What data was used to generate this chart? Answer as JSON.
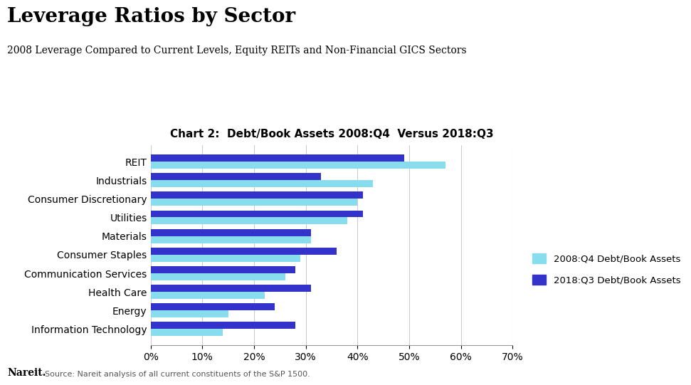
{
  "title": "Leverage Ratios by Sector",
  "subtitle": "2008 Leverage Compared to Current Levels, Equity REITs and Non-Financial GICS Sectors",
  "chart_title": "Chart 2:  Debt/Book Assets 2008:Q4  Versus 2018:Q3",
  "categories": [
    "REIT",
    "Industrials",
    "Consumer Discretionary",
    "Utilities",
    "Materials",
    "Consumer Staples",
    "Communication Services",
    "Health Care",
    "Energy",
    "Information Technology"
  ],
  "values_2008Q4": [
    57,
    43,
    40,
    38,
    31,
    29,
    26,
    22,
    15,
    14
  ],
  "values_2018Q3": [
    49,
    33,
    41,
    41,
    31,
    36,
    28,
    31,
    24,
    28
  ],
  "color_2008Q4": "#87DDEE",
  "color_2018Q3": "#3333CC",
  "xlim": [
    0,
    70
  ],
  "xticks": [
    0,
    10,
    20,
    30,
    40,
    50,
    60,
    70
  ],
  "xtick_labels": [
    "0%",
    "10%",
    "20%",
    "30%",
    "40%",
    "50%",
    "60%",
    "70%"
  ],
  "legend_2008Q4": "2008:Q4 Debt/Book Assets",
  "legend_2018Q3": "2018:Q3 Debt/Book Assets",
  "footer_bold": "Nareit.",
  "footer_text": "Source: Nareit analysis of all current constituents of the S&P 1500.",
  "background_color": "#ffffff"
}
